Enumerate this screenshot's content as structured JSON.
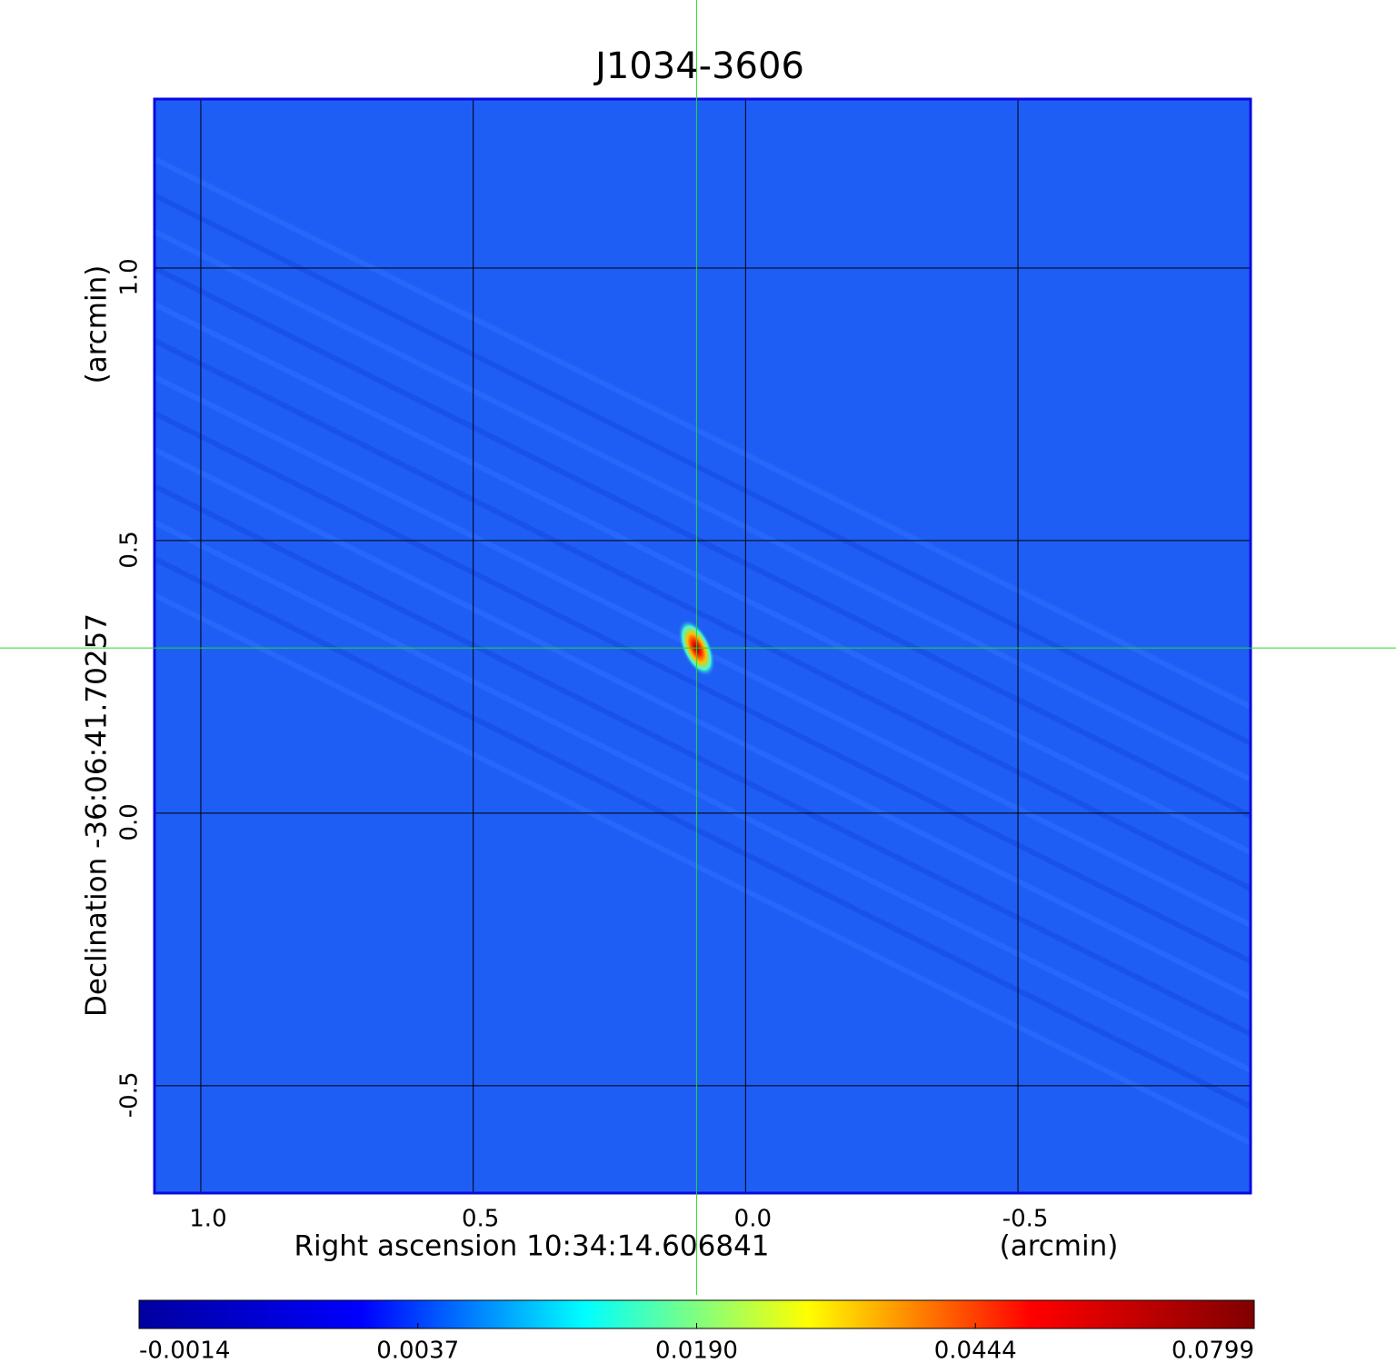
{
  "chart_data": {
    "type": "image",
    "title": "J1034-3606",
    "x_label": "Right ascension  10:34:14.606841",
    "x_unit": "(arcmin)",
    "y_label": "Declination  -36:06:41.70257",
    "y_unit": "(arcmin)",
    "xlim": [
      1.085,
      -0.927
    ],
    "ylim": [
      -0.697,
      1.31
    ],
    "xticks": [
      {
        "value": 1.0,
        "label": "1.0"
      },
      0.5,
      {
        "value": 0.0,
        "label": "0.0"
      },
      -0.5
    ],
    "yticks": [
      -0.5,
      {
        "value": 0.0,
        "label": "0.0"
      },
      0.5,
      {
        "value": 1.0,
        "label": "1.0"
      }
    ],
    "grid": true,
    "image_color": "#1f5ef5",
    "frame_color": "#0a0ae0",
    "title_color": "#1010d0",
    "crosshair": {
      "x": 0.09,
      "y": 0.303,
      "color": "#22dd22"
    },
    "colorbar": {
      "ticks": [
        -0.0014,
        0.0037,
        {
          "value": 0.019,
          "label": "0.0190"
        },
        0.0444,
        0.0799
      ],
      "colors": [
        "#0000a0",
        "#0000ff",
        "#00ffff",
        "#ffff00",
        "#ff0000",
        "#800000"
      ]
    }
  }
}
